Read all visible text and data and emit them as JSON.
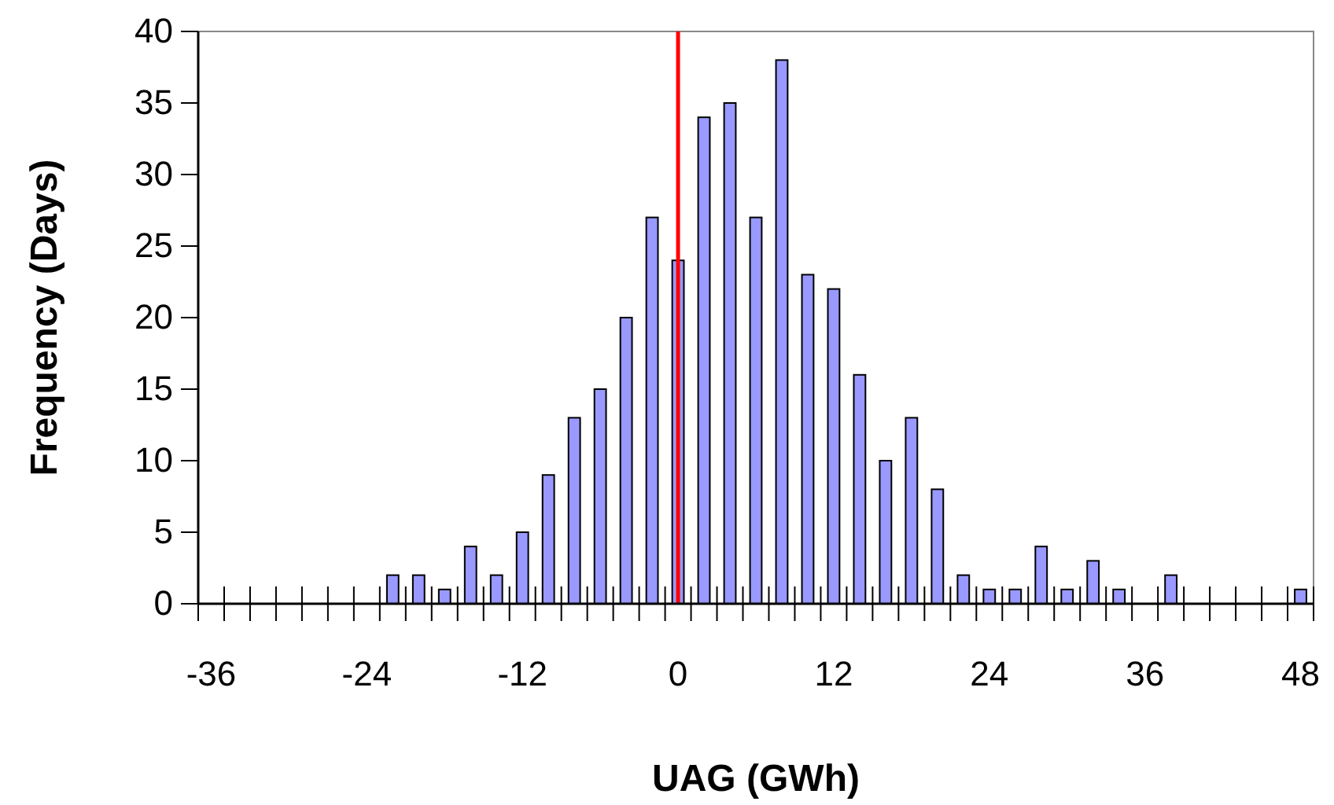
{
  "chart_data": {
    "type": "bar",
    "xlabel": "UAG (GWh)",
    "ylabel": "Frequency (Days)",
    "categories": [
      "-36",
      null,
      null,
      null,
      null,
      null,
      "-24",
      null,
      null,
      null,
      null,
      null,
      "-12",
      null,
      null,
      null,
      null,
      null,
      "0",
      null,
      null,
      null,
      null,
      null,
      "12",
      null,
      null,
      null,
      null,
      null,
      "24",
      null,
      null,
      null,
      null,
      null,
      "36",
      null,
      null,
      null,
      null,
      null,
      "48"
    ],
    "values": [
      0,
      0,
      0,
      0,
      0,
      0,
      0,
      2,
      2,
      1,
      4,
      2,
      5,
      9,
      13,
      15,
      20,
      27,
      24,
      34,
      35,
      27,
      38,
      23,
      22,
      16,
      10,
      13,
      8,
      2,
      1,
      1,
      4,
      1,
      3,
      1,
      0,
      2,
      0,
      0,
      0,
      0,
      1
    ],
    "color": "#9999ff",
    "ylim": [
      0,
      40
    ],
    "yticks": [
      0,
      5,
      10,
      15,
      20,
      25,
      30,
      35,
      40
    ],
    "grid": false,
    "ref_lines": [
      {
        "axis": "x",
        "value": "0",
        "color": "#ff0000"
      }
    ]
  }
}
